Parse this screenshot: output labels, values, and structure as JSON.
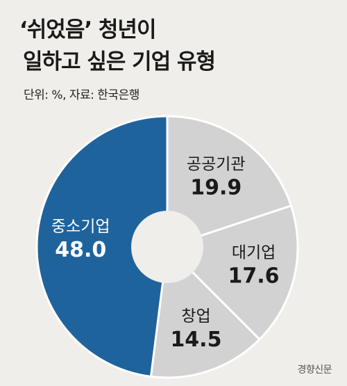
{
  "title": {
    "line1": "‘쉬었음’ 청년이",
    "line2": "일하고 싶은 기업 유형"
  },
  "note": "단위: %, 자료: 한국은행",
  "credit": "경향신문",
  "colors": {
    "background": "#efeeeb",
    "accent": "#1f639c",
    "other": "#d2d2d2",
    "separator": "#ffffff",
    "dark_text": "#1a1a1a",
    "light_text": "#ffffff"
  },
  "chart_data": {
    "type": "pie",
    "donut": true,
    "title": "‘쉬었음’ 청년이 일하고 싶은 기업 유형",
    "unit": "%",
    "source": "한국은행",
    "legend": "none",
    "slices": [
      {
        "label": "공공기관",
        "value": 19.9
      },
      {
        "label": "대기업",
        "value": 17.6
      },
      {
        "label": "창업",
        "value": 14.5
      },
      {
        "label": "중소기업",
        "value": 48.0
      }
    ]
  }
}
